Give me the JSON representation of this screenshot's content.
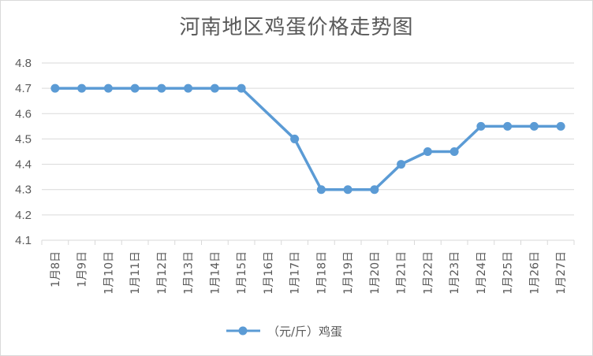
{
  "chart_data": {
    "type": "line",
    "title": "河南地区鸡蛋价格走势图",
    "categories": [
      "1月8日",
      "1月9日",
      "1月10日",
      "1月11日",
      "1月12日",
      "1月13日",
      "1月14日",
      "1月15日",
      "1月16日",
      "1月17日",
      "1月18日",
      "1月19日",
      "1月20日",
      "1月21日",
      "1月22日",
      "1月23日",
      "1月24日",
      "1月25日",
      "1月26日",
      "1月27日"
    ],
    "series": [
      {
        "name": "（元/斤）鸡蛋",
        "points": [
          {
            "x": "1月8日",
            "y": 4.7
          },
          {
            "x": "1月9日",
            "y": 4.7
          },
          {
            "x": "1月10日",
            "y": 4.7
          },
          {
            "x": "1月11日",
            "y": 4.7
          },
          {
            "x": "1月12日",
            "y": 4.7
          },
          {
            "x": "1月13日",
            "y": 4.7
          },
          {
            "x": "1月14日",
            "y": 4.7
          },
          {
            "x": "1月15日",
            "y": 4.7
          },
          {
            "x": "1月17日",
            "y": 4.5
          },
          {
            "x": "1月18日",
            "y": 4.3
          },
          {
            "x": "1月19日",
            "y": 4.3
          },
          {
            "x": "1月20日",
            "y": 4.3
          },
          {
            "x": "1月21日",
            "y": 4.4
          },
          {
            "x": "1月22日",
            "y": 4.45
          },
          {
            "x": "1月23日",
            "y": 4.45
          },
          {
            "x": "1月24日",
            "y": 4.55
          },
          {
            "x": "1月25日",
            "y": 4.55
          },
          {
            "x": "1月26日",
            "y": 4.55
          },
          {
            "x": "1月27日",
            "y": 4.55
          }
        ]
      }
    ],
    "yticks": [
      "4.1",
      "4.2",
      "4.3",
      "4.4",
      "4.5",
      "4.6",
      "4.7",
      "4.8"
    ],
    "ylim": [
      4.1,
      4.8
    ],
    "grid": true,
    "legend_position": "bottom",
    "colors": {
      "line": "#5b9bd5",
      "grid": "#d9d9d9",
      "text": "#595959"
    }
  }
}
